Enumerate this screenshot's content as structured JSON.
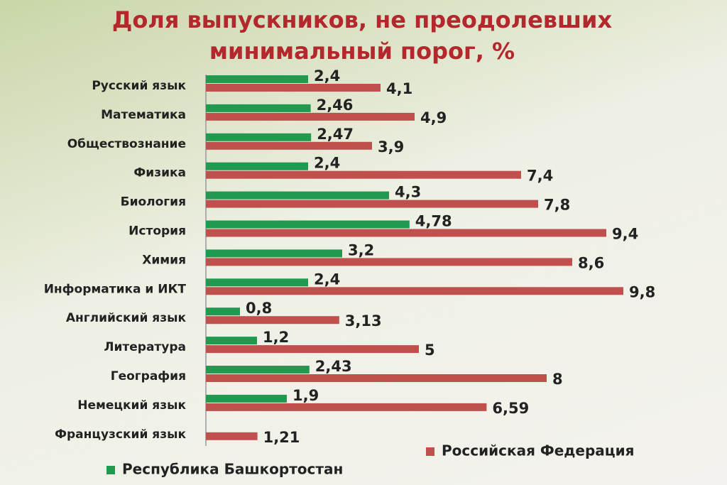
{
  "chart_data": {
    "type": "hbar",
    "title": "Доля выпускников, не преодолевших минимальный порог, %",
    "categories": [
      "Русский язык",
      "Математика",
      "Обществознание",
      "Физика",
      "Биология",
      "История",
      "Химия",
      "Информатика и ИКТ",
      "Английский язык",
      "Литература",
      "География",
      "Немецкий язык",
      "Французский язык"
    ],
    "series": [
      {
        "name": "Республика Башкортостан",
        "color": "#1f9a4e",
        "values": [
          2.4,
          2.46,
          2.47,
          2.4,
          4.3,
          4.78,
          3.2,
          2.4,
          0.8,
          1.2,
          2.43,
          1.9,
          null
        ],
        "value_labels": [
          "2,4",
          "2,46",
          "2,47",
          "2,4",
          "4,3",
          "4,78",
          "3,2",
          "2,4",
          "0,8",
          "1,2",
          "2,43",
          "1,9",
          null
        ]
      },
      {
        "name": "Российская Федерация",
        "color": "#c0504d",
        "values": [
          4.1,
          4.9,
          3.9,
          7.4,
          7.8,
          9.4,
          8.6,
          9.8,
          3.13,
          5,
          8,
          6.59,
          1.21
        ],
        "value_labels": [
          "4,1",
          "4,9",
          "3,9",
          "7,4",
          "7,8",
          "9,4",
          "8,6",
          "9,8",
          "3,13",
          "5",
          "8",
          "6,59",
          "1,21"
        ]
      }
    ],
    "xlim": [
      0,
      10
    ]
  }
}
